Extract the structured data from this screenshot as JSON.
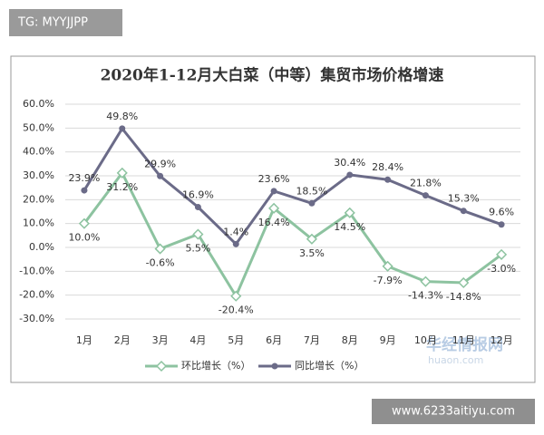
{
  "chart_data": {
    "type": "line",
    "title": "2020年1-12月大白菜（中等）集贸市场价格增速",
    "categories": [
      "1月",
      "2月",
      "3月",
      "4月",
      "5月",
      "6月",
      "7月",
      "8月",
      "9月",
      "10月",
      "11月",
      "12月"
    ],
    "series": [
      {
        "name": "环比增长（%）",
        "color": "#8dc3a0",
        "marker": "diamond",
        "values": [
          10.0,
          31.2,
          -0.6,
          5.5,
          -20.4,
          16.4,
          3.5,
          14.5,
          -7.9,
          -14.3,
          -14.8,
          -3.0
        ],
        "value_labels": [
          "10.0%",
          "31.2%",
          "-0.6%",
          "5.5%",
          "-20.4%",
          "16.4%",
          "3.5%",
          "14.5%",
          "-7.9%",
          "-14.3%",
          "-14.8%",
          "-3.0%"
        ]
      },
      {
        "name": "同比增长（%）",
        "color": "#6b6b88",
        "marker": "circle",
        "values": [
          23.9,
          49.8,
          29.9,
          16.9,
          1.4,
          23.6,
          18.5,
          30.4,
          28.4,
          21.8,
          15.3,
          9.6
        ],
        "value_labels": [
          "23.9%",
          "49.8%",
          "29.9%",
          "16.9%",
          "1.4%",
          "23.6%",
          "18.5%",
          "30.4%",
          "28.4%",
          "21.8%",
          "15.3%",
          "9.6%"
        ]
      }
    ],
    "ylim": [
      -30,
      60
    ],
    "yticks": [
      {
        "value": -30,
        "label": "-30.0%"
      },
      {
        "value": -20,
        "label": "-20.0%"
      },
      {
        "value": -10,
        "label": "-10.0%"
      },
      {
        "value": 0,
        "label": "0.0%"
      },
      {
        "value": 10,
        "label": "10.0%"
      },
      {
        "value": 20,
        "label": "20.0%"
      },
      {
        "value": 30,
        "label": "30.0%"
      },
      {
        "value": 40,
        "label": "40.0%"
      },
      {
        "value": 50,
        "label": "50.0%"
      },
      {
        "value": 60,
        "label": "60.0%"
      }
    ],
    "grid": true,
    "legend": "bottom"
  },
  "overlay": {
    "tag": "TG: MYYJJPP",
    "site": "www.6233aitiyu.com",
    "brand": "华经情报网",
    "brand_url": "huaon.com"
  }
}
